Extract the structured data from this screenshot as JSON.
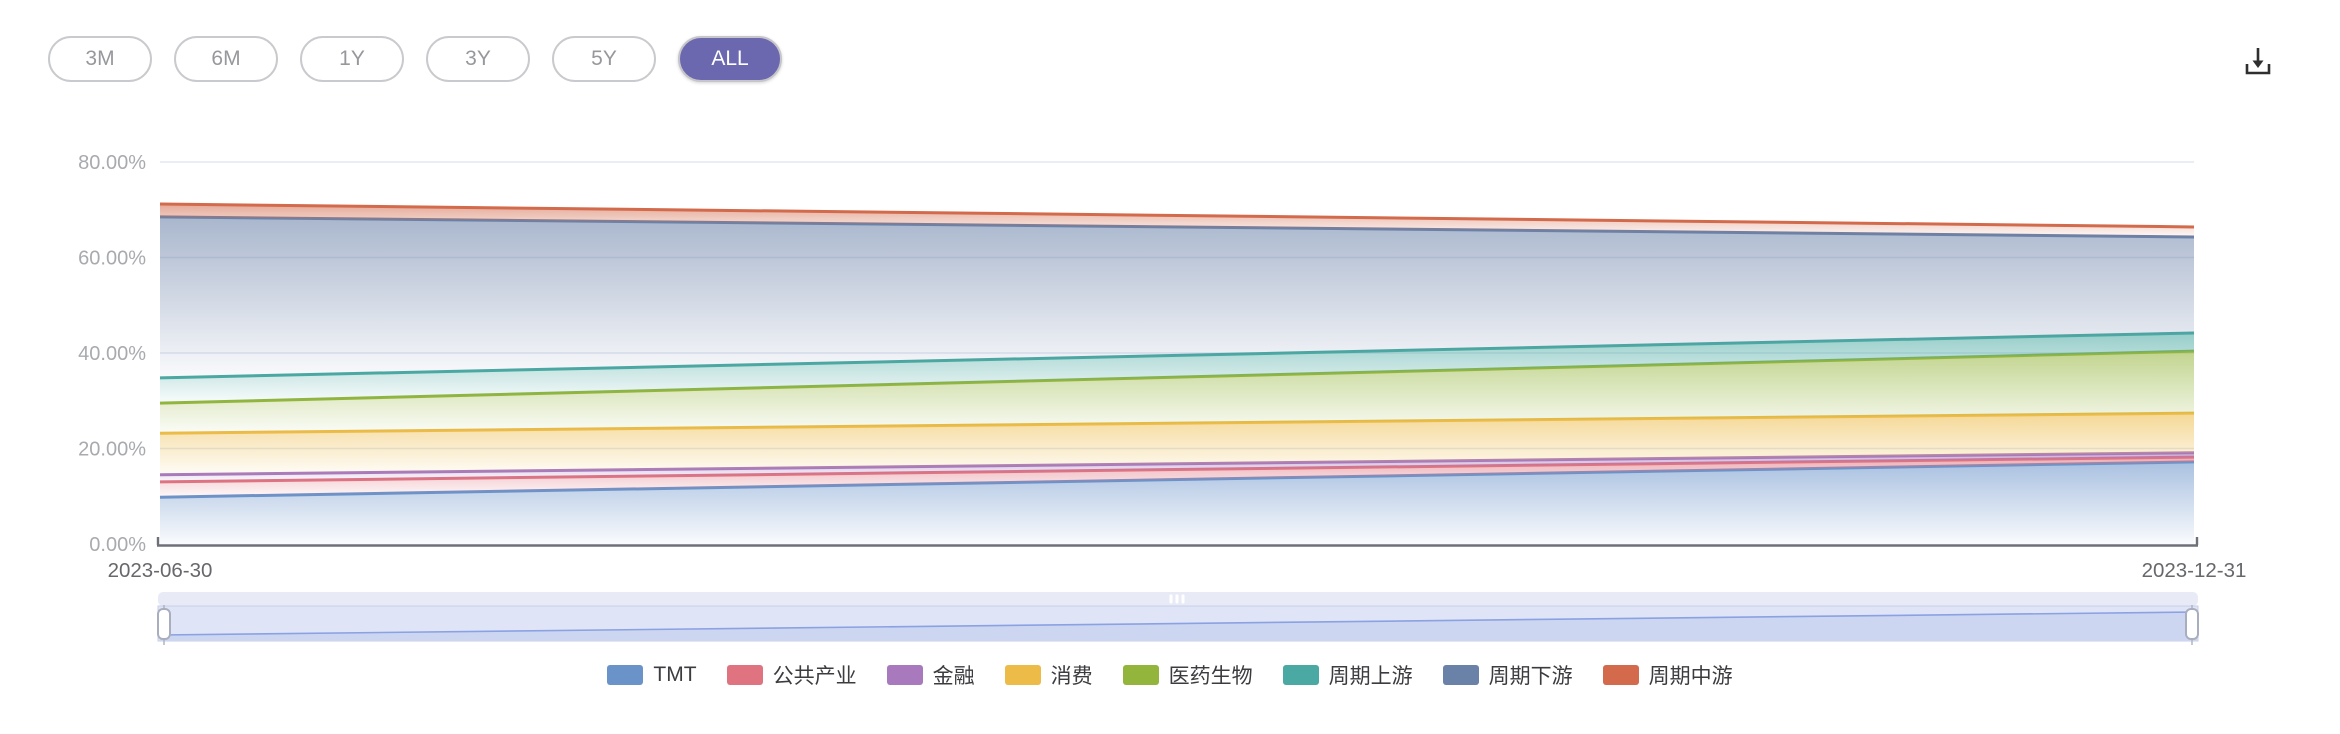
{
  "toolbar": {
    "ranges": [
      {
        "label": "3M",
        "active": false
      },
      {
        "label": "6M",
        "active": false
      },
      {
        "label": "1Y",
        "active": false
      },
      {
        "label": "3Y",
        "active": false
      },
      {
        "label": "5Y",
        "active": false
      },
      {
        "label": "ALL",
        "active": true
      }
    ],
    "download_icon": "download-icon"
  },
  "chart_data": {
    "type": "area",
    "stacked": true,
    "title": "",
    "x": [
      "2023-06-30",
      "2023-12-31"
    ],
    "series": [
      {
        "name": "TMT",
        "color": "#6a93ca",
        "values": [
          9.8,
          17.2
        ]
      },
      {
        "name": "公共产业",
        "color": "#df7380",
        "values": [
          3.2,
          1.0
        ]
      },
      {
        "name": "金融",
        "color": "#a879bd",
        "values": [
          1.5,
          0.9
        ]
      },
      {
        "name": "消费",
        "color": "#edbb48",
        "values": [
          8.7,
          8.3
        ]
      },
      {
        "name": "医药生物",
        "color": "#94b53c",
        "values": [
          6.3,
          13.0
        ]
      },
      {
        "name": "周期上游",
        "color": "#4aa9a2",
        "values": [
          5.3,
          3.8
        ]
      },
      {
        "name": "周期下游",
        "color": "#6a81a8",
        "values": [
          33.7,
          20.1
        ]
      },
      {
        "name": "周期中游",
        "color": "#d26a4b",
        "values": [
          2.7,
          2.1
        ]
      }
    ],
    "yticks": [
      {
        "label": "0.00%",
        "value": 0
      },
      {
        "label": "20.00%",
        "value": 20
      },
      {
        "label": "40.00%",
        "value": 40
      },
      {
        "label": "60.00%",
        "value": 60
      },
      {
        "label": "80.00%",
        "value": 80
      }
    ],
    "ylim": [
      0,
      80
    ],
    "grid": true,
    "legend_position": "bottom"
  },
  "slider": {
    "move_icon": "drag-handle-icon",
    "left_handle": "slider-handle-left",
    "right_handle": "slider-handle-right"
  },
  "colors": {
    "accent": "#6b68b0",
    "axis": "#6e7079",
    "tick_label": "#a8aaaf",
    "date_label": "#67686c",
    "grid": "#e2e7f3",
    "slider_track": "#e8ebf6",
    "slider_band": "#dfe4f7",
    "slider_band_border": "#c7cfe8",
    "slider_shadow_fill": "#ccd6f1",
    "slider_shadow_line": "#8ba2e2",
    "handle_fill": "#ffffff",
    "handle_border": "#a9aebf",
    "icon_dark": "#2f2f31"
  }
}
